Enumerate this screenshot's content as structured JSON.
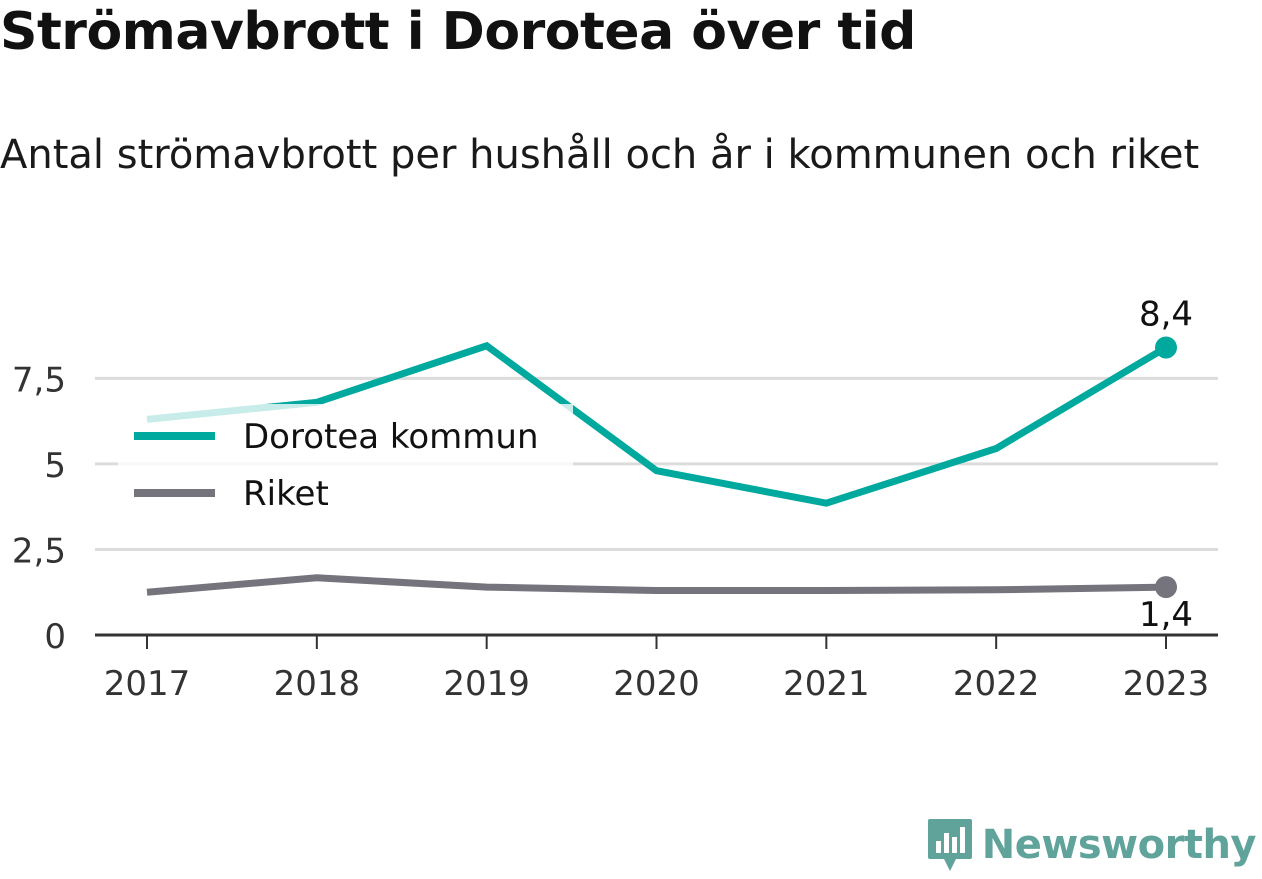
{
  "title": "Strömavbrott i Dorotea över tid",
  "subtitle": "Antal strömavbrott per hushåll och år i kommunen och riket",
  "brand": "Newsworthy",
  "colors": {
    "dorotea": "#00a99d",
    "riket": "#75737c",
    "grid": "#dcdcdc",
    "axis": "#333333",
    "brand": "#5fa39a"
  },
  "chart_data": {
    "type": "line",
    "x": [
      "2017",
      "2018",
      "2019",
      "2020",
      "2021",
      "2022",
      "2023"
    ],
    "series": [
      {
        "name": "Dorotea kommun",
        "values": [
          6.3,
          6.8,
          8.45,
          4.8,
          3.85,
          5.45,
          8.4
        ]
      },
      {
        "name": "Riket",
        "values": [
          1.25,
          1.67,
          1.4,
          1.3,
          1.3,
          1.32,
          1.4
        ]
      }
    ],
    "end_labels": [
      "8,4",
      "1,4"
    ],
    "yticks": [
      "0",
      "2,5",
      "5",
      "7,5"
    ],
    "ytick_values": [
      0,
      2.5,
      5,
      7.5
    ],
    "ylim": [
      0,
      9
    ],
    "legend": "inside-left",
    "grid": true
  }
}
